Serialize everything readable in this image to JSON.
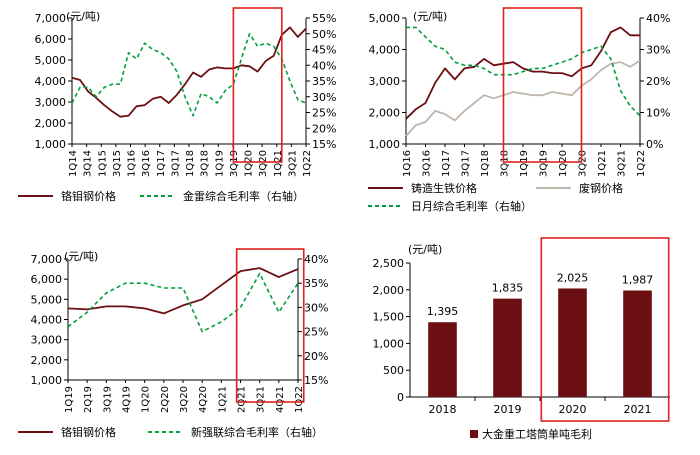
{
  "colors": {
    "dark_red": "#6b0f12",
    "green": "#00a03c",
    "gray": "#bfb6ad",
    "highlight": "#e0201c",
    "axis": "#000000"
  },
  "chart_data": [
    {
      "id": "c1",
      "type": "line",
      "unit_label": "(元/吨)",
      "x_labels": [
        "1Q14",
        "3Q14",
        "1Q15",
        "3Q15",
        "1Q16",
        "3Q16",
        "1Q17",
        "3Q17",
        "1Q18",
        "3Q18",
        "1Q19",
        "3Q19",
        "1Q20",
        "3Q20",
        "1Q21",
        "3Q21",
        "1Q22"
      ],
      "ylim_left": [
        1000,
        7000
      ],
      "yticks_left": [
        "1,000",
        "2,000",
        "3,000",
        "4,000",
        "5,000",
        "6,000",
        "7,000"
      ],
      "ylim_right": [
        15,
        55
      ],
      "yticks_right": [
        "15%",
        "20%",
        "25%",
        "30%",
        "35%",
        "40%",
        "45%",
        "50%",
        "55%"
      ],
      "highlight_range": [
        20,
        26
      ],
      "series": [
        {
          "name": "铬钼钢价格",
          "axis": "left",
          "style": "solid",
          "color_key": "dark_red",
          "values": [
            4150,
            4050,
            3500,
            3200,
            2850,
            2550,
            2300,
            2350,
            2800,
            2850,
            3150,
            3250,
            2950,
            3350,
            3850,
            4400,
            4200,
            4550,
            4650,
            4600,
            4600,
            4750,
            4700,
            4450,
            4950,
            5200,
            6200,
            6550,
            6100,
            6500
          ]
        },
        {
          "name": "金雷综合毛利率（右轴）",
          "axis": "right",
          "style": "dashed",
          "color_key": "green",
          "values": [
            28,
            33,
            33,
            30,
            33,
            34,
            34,
            44,
            42,
            47,
            45,
            44,
            42,
            38,
            30,
            24,
            31,
            30,
            28,
            32,
            34,
            42,
            50,
            46,
            47,
            46,
            42,
            35,
            29,
            28
          ]
        }
      ]
    },
    {
      "id": "c2",
      "type": "line",
      "unit_label": "(元/吨)",
      "x_labels": [
        "1Q16",
        "3Q16",
        "1Q17",
        "3Q17",
        "1Q18",
        "3Q18",
        "1Q19",
        "3Q19",
        "1Q20",
        "3Q20",
        "1Q21",
        "3Q21",
        "1Q22"
      ],
      "ylim_left": [
        1000,
        5000
      ],
      "yticks_left": [
        "1,000",
        "2,000",
        "3,000",
        "4,000",
        "5,000"
      ],
      "ylim_right": [
        0,
        40
      ],
      "yticks_right": [
        "0%",
        "10%",
        "20%",
        "30%",
        "40%"
      ],
      "highlight_range": [
        10,
        18
      ],
      "series": [
        {
          "name": "铸造生铁价格",
          "axis": "left",
          "style": "solid",
          "color_key": "dark_red",
          "values": [
            1800,
            2100,
            2300,
            2950,
            3400,
            3050,
            3400,
            3450,
            3700,
            3500,
            3550,
            3600,
            3400,
            3300,
            3300,
            3250,
            3250,
            3150,
            3400,
            3500,
            3950,
            4550,
            4700,
            4450,
            4450
          ]
        },
        {
          "name": "废钢价格",
          "axis": "left",
          "style": "solid",
          "color_key": "gray",
          "values": [
            1250,
            1600,
            1700,
            2050,
            1950,
            1750,
            2050,
            2300,
            2550,
            2450,
            2550,
            2650,
            2600,
            2550,
            2550,
            2650,
            2600,
            2550,
            2850,
            3050,
            3350,
            3550,
            3600,
            3450,
            3650
          ]
        },
        {
          "name": "日月综合毛利率（右轴）",
          "axis": "right",
          "style": "dashed",
          "color_key": "green",
          "values": [
            37,
            37,
            34,
            31,
            30,
            26,
            25,
            25,
            24,
            22,
            22,
            22,
            23,
            24,
            24,
            25,
            26,
            27,
            29,
            30,
            31,
            27,
            17,
            12,
            9
          ]
        }
      ]
    },
    {
      "id": "c3",
      "type": "line",
      "unit_label": "(元/吨)",
      "x_labels": [
        "1Q19",
        "2Q19",
        "3Q19",
        "4Q19",
        "1Q20",
        "2Q20",
        "3Q20",
        "4Q20",
        "1Q21",
        "2Q21",
        "3Q21",
        "4Q21",
        "1Q22"
      ],
      "ylim_left": [
        1000,
        7000
      ],
      "yticks_left": [
        "1,000",
        "2,000",
        "3,000",
        "4,000",
        "5,000",
        "6,000",
        "7,000"
      ],
      "ylim_right": [
        15,
        40
      ],
      "yticks_right": [
        "15%",
        "20%",
        "25%",
        "30%",
        "35%",
        "40%"
      ],
      "highlight_range": [
        8.8,
        12.3
      ],
      "series": [
        {
          "name": "铬钼钢价格",
          "axis": "left",
          "style": "solid",
          "color_key": "dark_red",
          "values": [
            4550,
            4500,
            4650,
            4650,
            4550,
            4300,
            4700,
            5000,
            5700,
            6400,
            6550,
            6100,
            6500
          ]
        },
        {
          "name": "新强联综合毛利率（右轴）",
          "axis": "right",
          "style": "dashed",
          "color_key": "green",
          "values": [
            26,
            29,
            33,
            35,
            35,
            34,
            34,
            25,
            27,
            30,
            37,
            29,
            35
          ]
        }
      ]
    },
    {
      "id": "c4",
      "type": "bar",
      "unit_label": "(元/吨)",
      "categories": [
        "2018",
        "2019",
        "2020",
        "2021"
      ],
      "values": [
        1395,
        1835,
        2025,
        1987
      ],
      "data_labels": [
        "1,395",
        "1,835",
        "2,025",
        "1,987"
      ],
      "ylim": [
        0,
        2500
      ],
      "yticks": [
        "0",
        "500",
        "1,000",
        "1,500",
        "2,000",
        "2,500"
      ],
      "highlight_range": [
        2,
        3
      ],
      "series_name": "大金重工塔筒单吨毛利"
    }
  ]
}
